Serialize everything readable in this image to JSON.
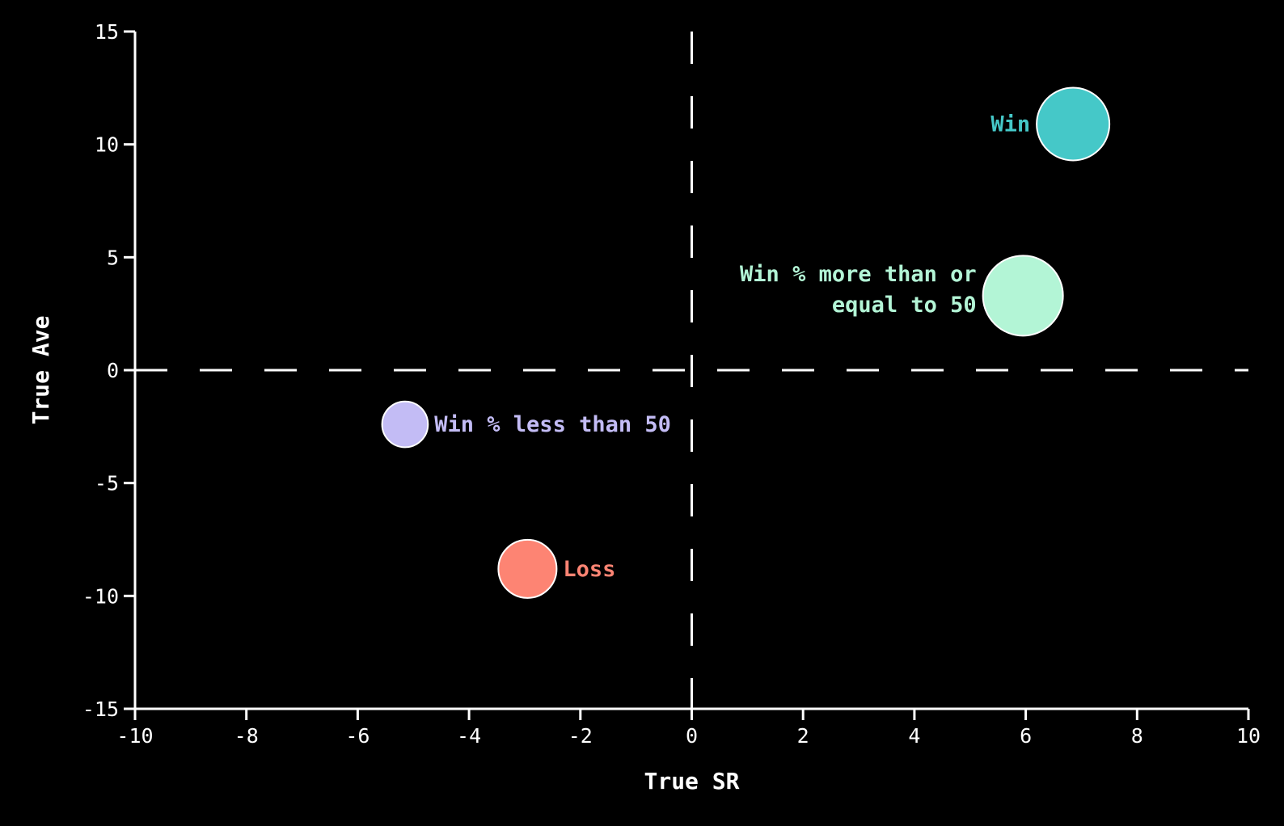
{
  "chart_data": {
    "type": "scatter",
    "title": "",
    "xlabel": "True SR",
    "ylabel": "True Ave",
    "xlim": [
      -10,
      10
    ],
    "ylim": [
      -15,
      15
    ],
    "x_ticks": [
      -10,
      -8,
      -6,
      -4,
      -2,
      0,
      2,
      4,
      6,
      8,
      10
    ],
    "y_ticks": [
      -15,
      -10,
      -5,
      0,
      5,
      10,
      15
    ],
    "reference_lines": {
      "x": 0,
      "y": 0,
      "style": "dashed"
    },
    "grid": false,
    "series": [
      {
        "label": [
          "Win"
        ],
        "x": 6.85,
        "y": 10.9,
        "size": 1.0,
        "color": "#45c8c8",
        "label_side": "left"
      },
      {
        "label": [
          "Win % more than or",
          "equal to 50"
        ],
        "x": 5.95,
        "y": 3.3,
        "size": 1.1,
        "color": "#b3f5d6",
        "label_side": "left"
      },
      {
        "label": [
          "Win % less than 50"
        ],
        "x": -5.15,
        "y": -2.4,
        "size": 0.63,
        "color": "#c3bcf5",
        "label_side": "right"
      },
      {
        "label": [
          "Loss"
        ],
        "x": -2.95,
        "y": -8.8,
        "size": 0.8,
        "color": "#fd8473",
        "label_side": "right"
      }
    ]
  }
}
